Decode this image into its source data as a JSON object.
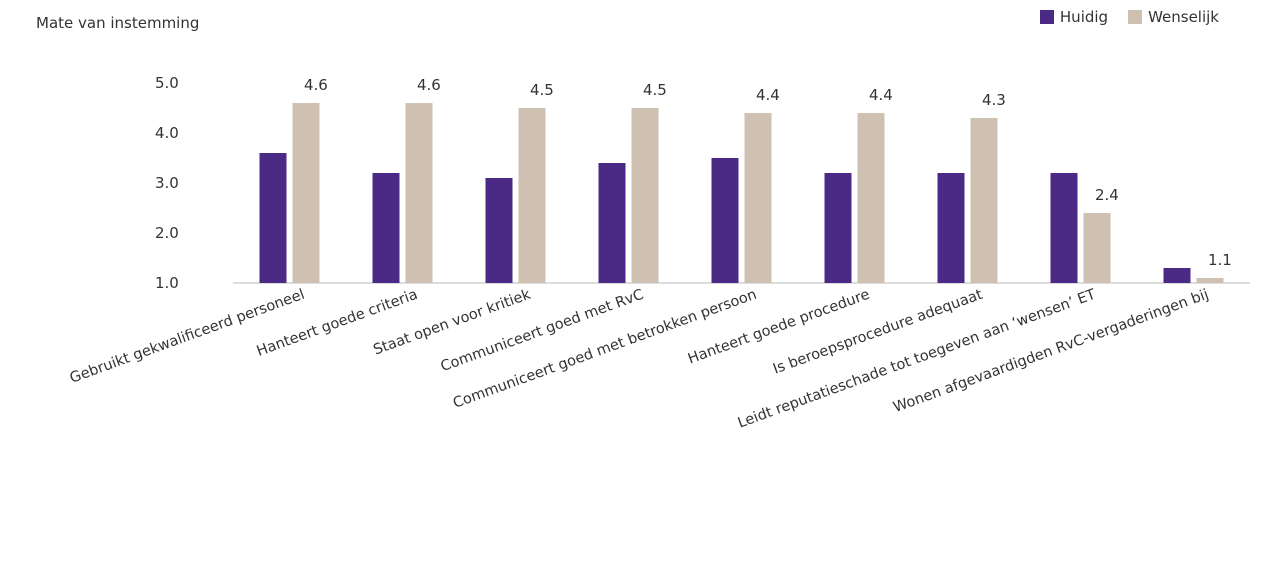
{
  "chart_data": {
    "type": "bar",
    "title": "",
    "xlabel": "",
    "ylabel": "Mate van instemming",
    "ylim": [
      1.0,
      5.0
    ],
    "yticks": [
      "1.0",
      "2.0",
      "3.0",
      "4.0",
      "5.0"
    ],
    "grid": false,
    "legend_position": "top-right",
    "categories": [
      "Gebruikt  gekwalificeerd personeel",
      "Hanteert  goede criteria",
      "Staat open voor kritiek",
      "Communiceert goed met RvC",
      "Communiceert goed met betrokken persoon",
      "Hanteert goede procedure",
      "Is beroepsprocedure adequaat",
      "Leidt reputatieschade tot toegeven aan ‘wensen’ ET",
      "Wonen afgevaardigden RvC-vergaderingen bij"
    ],
    "series": [
      {
        "name": "Huidig",
        "color": "#4b2a85",
        "values": [
          3.6,
          3.2,
          3.1,
          3.4,
          3.5,
          3.2,
          3.2,
          3.2,
          1.3
        ]
      },
      {
        "name": "Wenselijk",
        "color": "#cfc1b2",
        "values": [
          4.6,
          4.6,
          4.5,
          4.5,
          4.4,
          4.4,
          4.3,
          2.4,
          1.1
        ],
        "labels": [
          "4.6",
          "4.6",
          "4.5",
          "4.5",
          "4.4",
          "4.4",
          "4.3",
          "2.4",
          "1.1"
        ]
      }
    ]
  }
}
